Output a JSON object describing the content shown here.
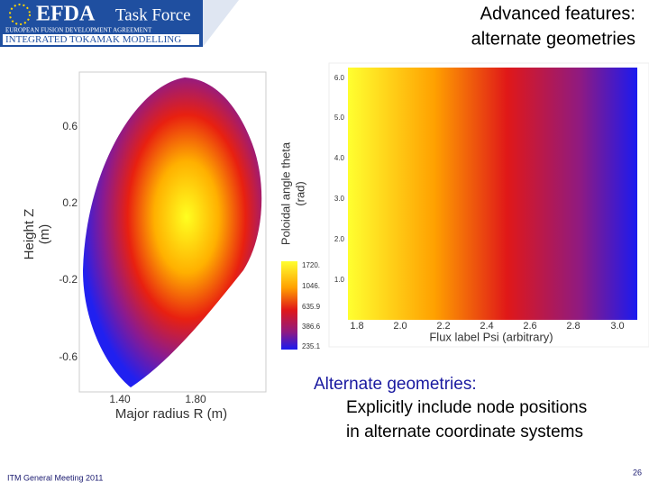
{
  "header": {
    "logo_title": "EFDA",
    "logo_subtitle": "Task Force",
    "line1": "EUROPEAN FUSION DEVELOPMENT AGREEMENT",
    "line2": "INTEGRATED TOKAMAK MODELLING"
  },
  "title": [
    "Advanced features:",
    "alternate geometries"
  ],
  "left_plot": {
    "yticks": [
      "0.6",
      "0.2",
      "-0.2",
      "-0.6"
    ],
    "xticks": [
      "1.40",
      "1.80"
    ],
    "ylabel": [
      "Height Z",
      "(m)"
    ],
    "xlabel": "Major radius R (m)"
  },
  "colorbar": {
    "label": [
      "Poloidal angle theta",
      "(rad)"
    ],
    "ticks": [
      "1720.",
      "1046.",
      "635.9",
      "386.6",
      "235.1"
    ]
  },
  "right_plot": {
    "yticks": [
      "6.0",
      "5.0",
      "4.0",
      "3.0",
      "2.0",
      "1.0"
    ],
    "xticks": [
      "1.8",
      "2.0",
      "2.2",
      "2.4",
      "2.6",
      "2.8",
      "3.0"
    ],
    "xlabel": "Flux label Psi (arbitrary)"
  },
  "body": {
    "heading": "Alternate geometries:",
    "lines": [
      "Explicitly include node positions",
      "in alternate coordinate systems"
    ]
  },
  "footer": {
    "meeting": "ITM General Meeting 2011",
    "page": "26"
  }
}
